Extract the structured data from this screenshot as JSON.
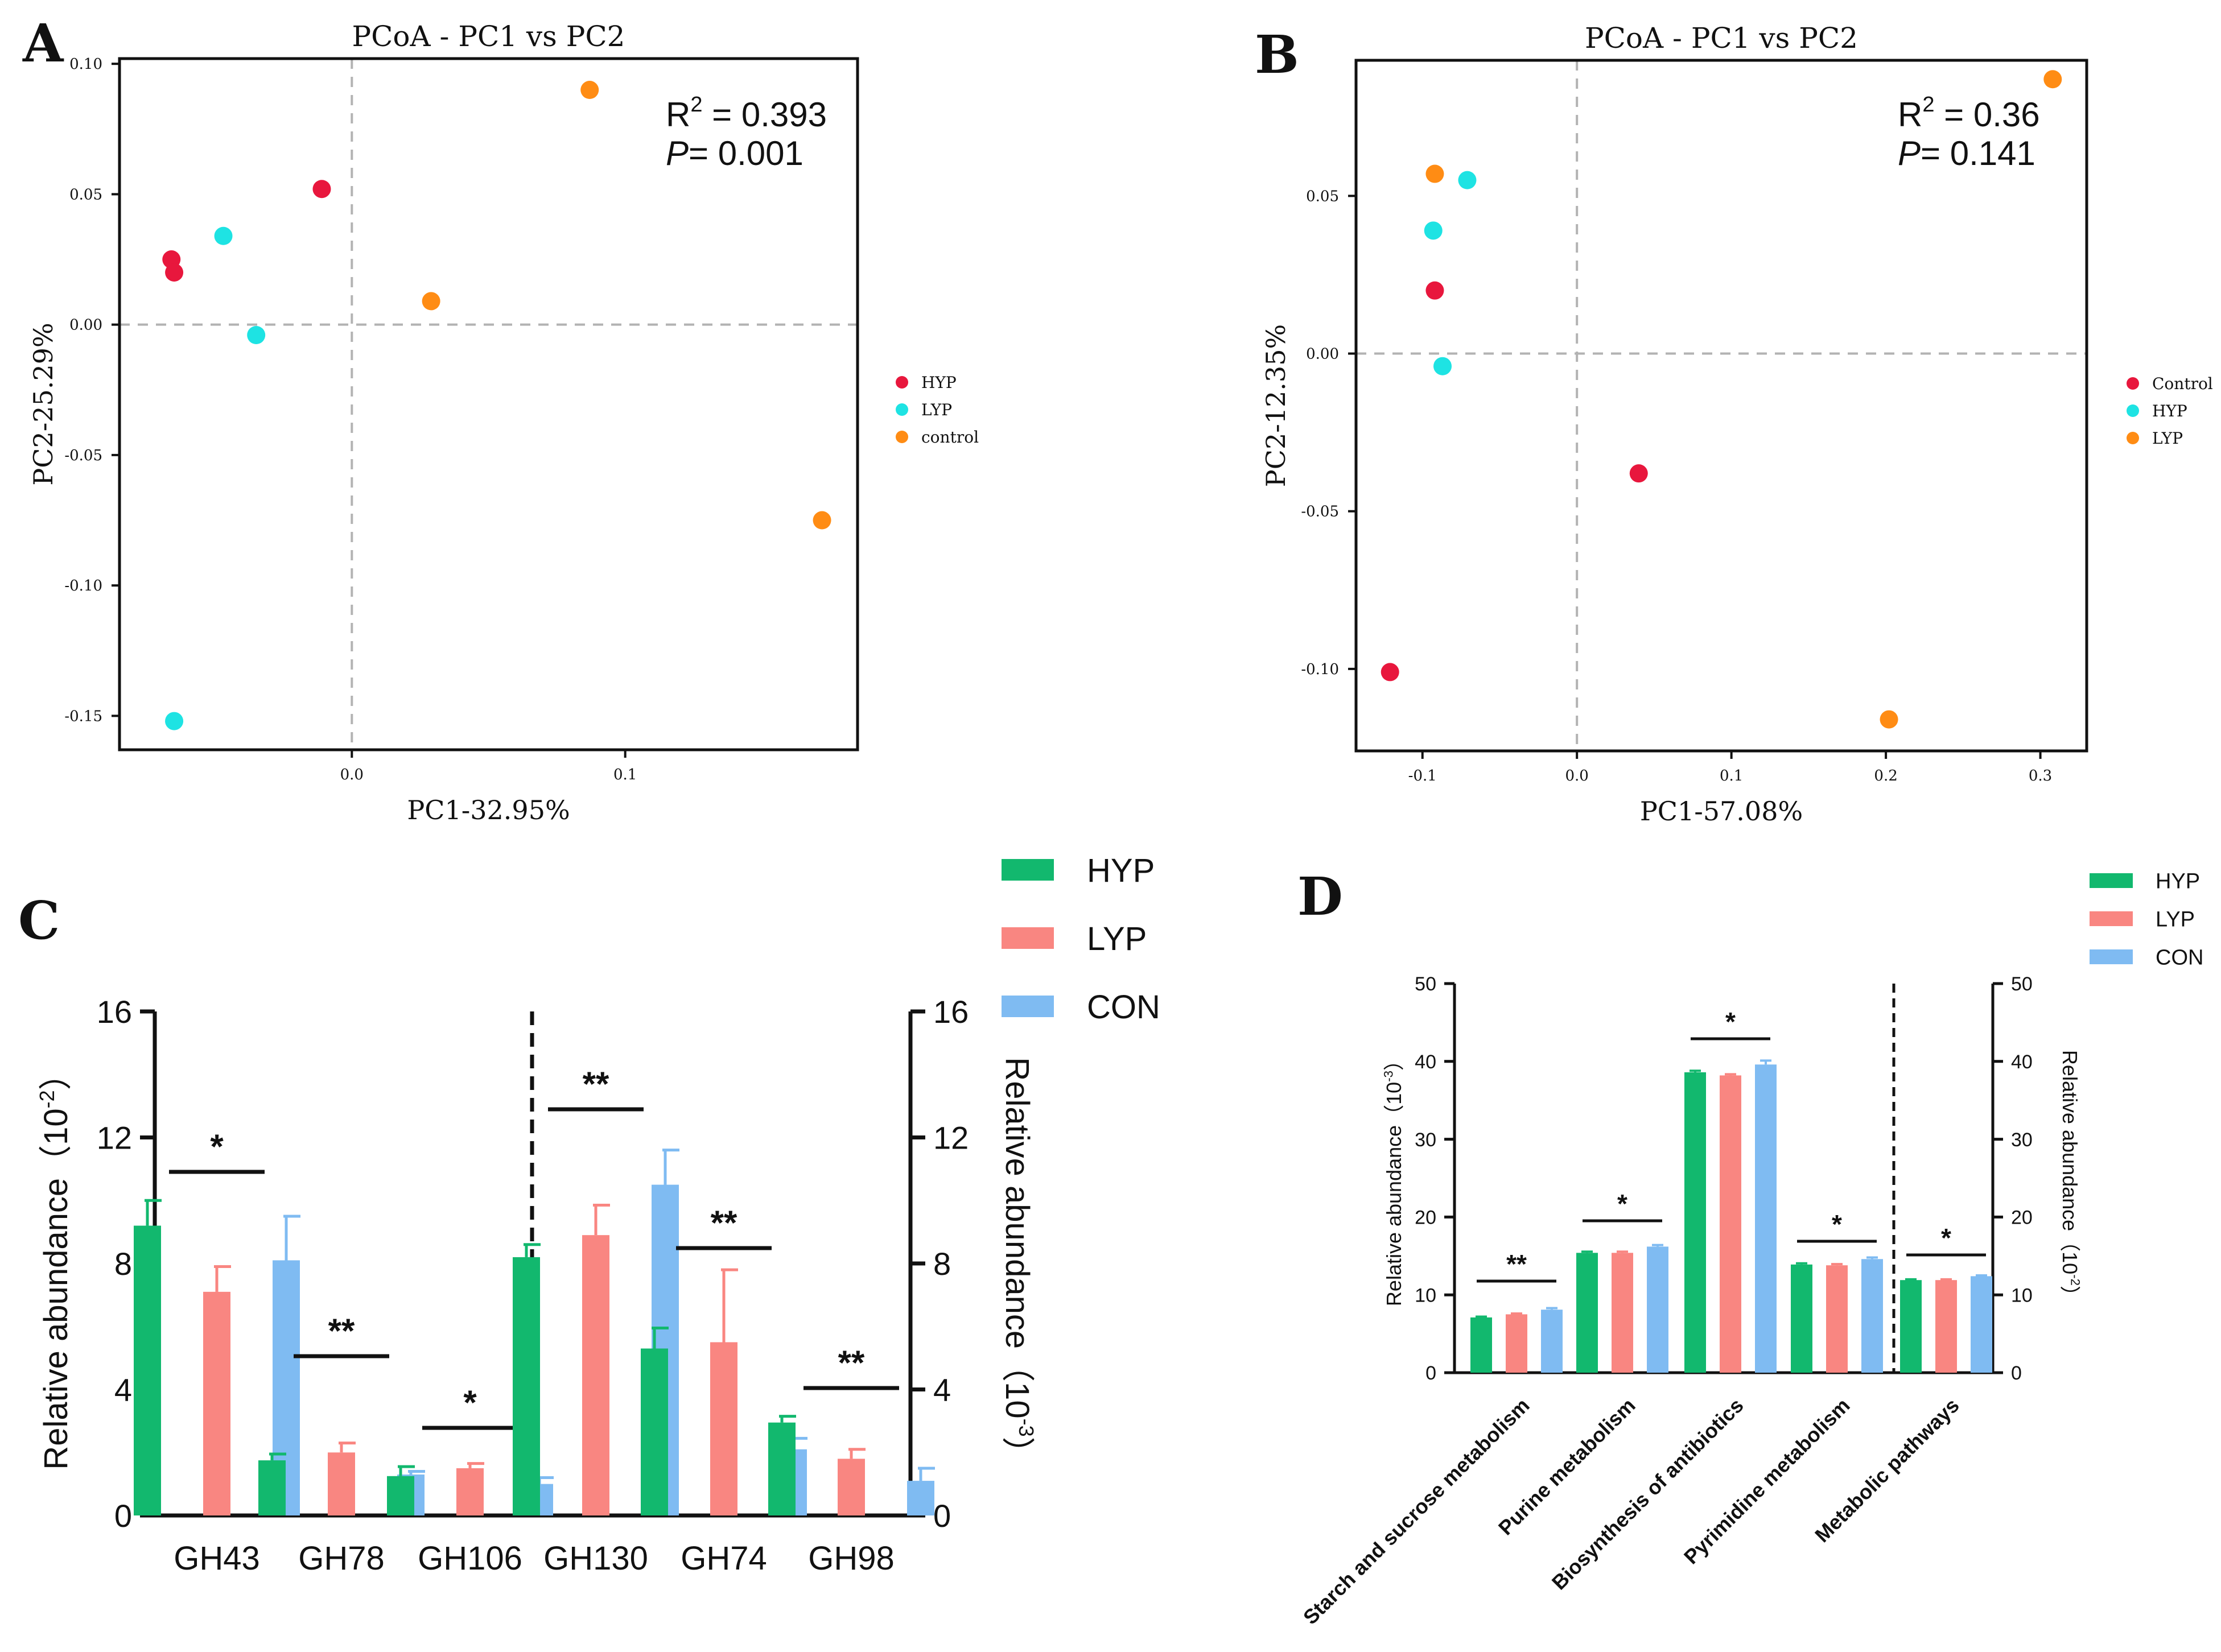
{
  "chart_data": [
    {
      "panel": "A",
      "type": "scatter",
      "title": "PCoA - PC1 vs PC2",
      "xlabel": "PC1-32.95%",
      "ylabel": "PC2-25.29%",
      "xlim": [
        -0.085,
        0.185
      ],
      "ylim": [
        -0.163,
        0.102
      ],
      "xticks": [
        0.0,
        0.1
      ],
      "xtick_labels": [
        "0.0",
        "0.1"
      ],
      "yticks": [
        0.1,
        0.05,
        0.0,
        -0.05,
        -0.1,
        -0.15
      ],
      "ytick_labels": [
        "0.10",
        "0.05",
        "0.00",
        "-0.05",
        "-0.10",
        "-0.15"
      ],
      "stats": {
        "r2_label": "R",
        "r2_sup": "2",
        "r2_value": " = 0.393",
        "p_label": "P",
        "p_value": "= 0.001"
      },
      "legend": {
        "position": "right",
        "entries": [
          "HYP",
          "LYP",
          "control"
        ]
      },
      "series": [
        {
          "name": "HYP",
          "color": "#e8173d",
          "points": [
            [
              -0.066,
              0.025
            ],
            [
              -0.065,
              0.02
            ],
            [
              -0.011,
              0.052
            ]
          ]
        },
        {
          "name": "LYP",
          "color": "#1ee3e3",
          "points": [
            [
              -0.047,
              0.034
            ],
            [
              -0.035,
              -0.004
            ],
            [
              -0.065,
              -0.152
            ]
          ]
        },
        {
          "name": "control",
          "color": "#ff8c14",
          "points": [
            [
              0.029,
              0.009
            ],
            [
              0.087,
              0.09
            ],
            [
              0.172,
              -0.075
            ]
          ]
        }
      ]
    },
    {
      "panel": "B",
      "type": "scatter",
      "title": "PCoA - PC1 vs PC2",
      "xlabel": "PC1-57.08%",
      "ylabel": "PC2-12.35%",
      "xlim": [
        -0.143,
        0.33
      ],
      "ylim": [
        -0.126,
        0.093
      ],
      "xticks": [
        -0.1,
        0.0,
        0.1,
        0.2,
        0.3
      ],
      "xtick_labels": [
        "-0.1",
        "0.0",
        "0.1",
        "0.2",
        "0.3"
      ],
      "yticks": [
        0.05,
        0.0,
        -0.05,
        -0.1
      ],
      "ytick_labels": [
        "0.05",
        "0.00",
        "-0.05",
        "-0.10"
      ],
      "stats": {
        "r2_label": "R",
        "r2_sup": "2",
        "r2_value": " = 0.36",
        "p_label": "P",
        "p_value": "= 0.141"
      },
      "legend": {
        "position": "right",
        "entries": [
          "Control",
          "HYP",
          "LYP"
        ]
      },
      "series": [
        {
          "name": "Control",
          "color": "#e8173d",
          "points": [
            [
              -0.092,
              0.02
            ],
            [
              0.04,
              -0.038
            ],
            [
              -0.121,
              -0.101
            ]
          ]
        },
        {
          "name": "HYP",
          "color": "#1ee3e3",
          "points": [
            [
              -0.071,
              0.055
            ],
            [
              -0.093,
              0.039
            ],
            [
              -0.087,
              -0.004
            ]
          ]
        },
        {
          "name": "LYP",
          "color": "#ff8c14",
          "points": [
            [
              -0.092,
              0.057
            ],
            [
              0.308,
              0.087
            ],
            [
              0.202,
              -0.116
            ]
          ]
        }
      ]
    },
    {
      "panel": "C",
      "type": "bar",
      "categories": [
        "GH43",
        "GH78",
        "GH106",
        "GH130",
        "GH74",
        "GH98"
      ],
      "ylabel_left": "Relative abundance（10",
      "ylabel_left_sup": "-2",
      "ylabel_left_end": "）",
      "ylabel_right": "Relative abundance（10",
      "ylabel_right_sup": "-3",
      "ylabel_right_end": "）",
      "ylim": [
        0,
        16
      ],
      "yticks": [
        0,
        4,
        8,
        12,
        16
      ],
      "legend": {
        "position": "top-right",
        "entries": [
          "HYP",
          "LYP",
          "CON"
        ]
      },
      "series": [
        {
          "name": "HYP",
          "color": "#12b86e",
          "values": [
            9.2,
            1.75,
            1.25,
            8.2,
            5.3,
            2.95
          ],
          "errors": [
            0.8,
            0.2,
            0.3,
            0.4,
            0.65,
            0.2
          ]
        },
        {
          "name": "LYP",
          "color": "#f98681",
          "values": [
            7.1,
            2.0,
            1.5,
            8.9,
            5.5,
            1.8
          ],
          "errors": [
            0.8,
            0.3,
            0.15,
            0.95,
            2.3,
            0.3
          ]
        },
        {
          "name": "CON",
          "color": "#7fbbf2",
          "values": [
            8.1,
            1.3,
            1.0,
            10.5,
            2.1,
            1.1
          ],
          "errors": [
            1.4,
            0.1,
            0.2,
            1.1,
            0.35,
            0.4
          ]
        }
      ],
      "significance": [
        "*",
        "**",
        "*",
        "**",
        "**",
        "**"
      ]
    },
    {
      "panel": "D",
      "type": "bar",
      "categories": [
        "Starch and sucrose metabolism",
        "Purine metabolism",
        "Biosynthesis of antibiotics",
        "Pyrimidine metabolism",
        "Metabolic pathways"
      ],
      "ylabel_left": "Relative abundance（10",
      "ylabel_left_sup": "-3",
      "ylabel_left_end": "）",
      "ylabel_right": "Relative abundance（10",
      "ylabel_right_sup": "-2",
      "ylabel_right_end": "）",
      "ylim": [
        0,
        50
      ],
      "yticks": [
        0,
        10,
        20,
        30,
        40,
        50
      ],
      "legend": {
        "position": "top-right",
        "entries": [
          "HYP",
          "LYP",
          "CON"
        ]
      },
      "series": [
        {
          "name": "HYP",
          "color": "#12b86e",
          "values": [
            7.1,
            15.4,
            38.6,
            13.9,
            11.9
          ],
          "errors": [
            0.1,
            0.15,
            0.2,
            0.15,
            0.1
          ]
        },
        {
          "name": "LYP",
          "color": "#f98681",
          "values": [
            7.5,
            15.4,
            38.2,
            13.8,
            11.9
          ],
          "errors": [
            0.1,
            0.15,
            0.15,
            0.15,
            0.1
          ]
        },
        {
          "name": "CON",
          "color": "#7fbbf2",
          "values": [
            8.1,
            16.2,
            39.6,
            14.6,
            12.4
          ],
          "errors": [
            0.2,
            0.2,
            0.5,
            0.2,
            0.1
          ]
        }
      ],
      "significance": [
        "**",
        "*",
        "*",
        "*",
        "*"
      ]
    }
  ],
  "panel_labels": [
    "A",
    "B",
    "C",
    "D"
  ]
}
